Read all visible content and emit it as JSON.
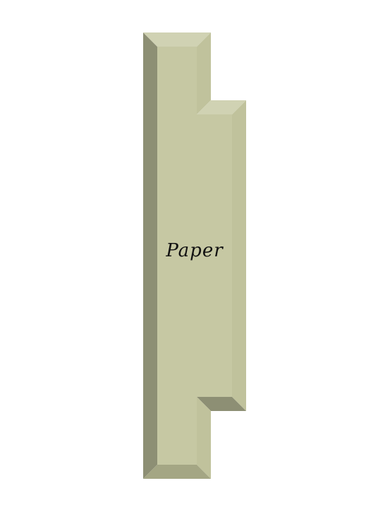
{
  "shape": {
    "label": "Paper",
    "colors": {
      "face": "#c6c8a3",
      "bevel_light": "#d0d2b3",
      "bevel_mid": "#c0c29c",
      "bevel_dark": "#8d8f74",
      "bevel_bottom": "#a4a684"
    }
  }
}
